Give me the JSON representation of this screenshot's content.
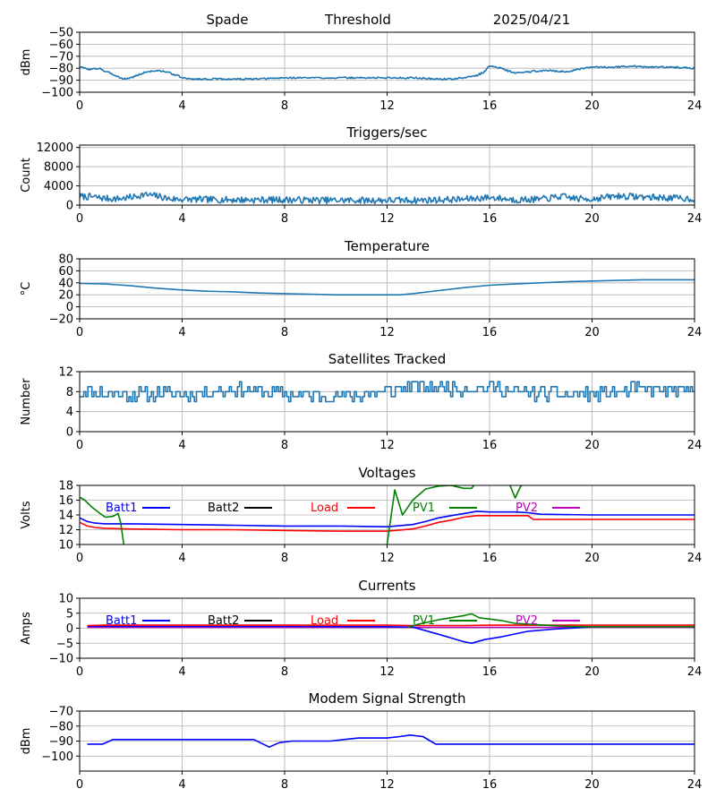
{
  "header": {
    "station": "Spade",
    "mode": "Threshold",
    "date": "2025/04/21"
  },
  "legend_labels": [
    "Batt1",
    "Batt2",
    "Load",
    "PV1",
    "PV2"
  ],
  "legend_colors": [
    "#0000ff",
    "#000000",
    "#ff0000",
    "#008000",
    "#bf00bf"
  ],
  "chart_data": [
    {
      "type": "line",
      "title": "",
      "ylabel": "dBm",
      "xlim": [
        0,
        24
      ],
      "ylim": [
        -100,
        -50
      ],
      "xticks": [
        0,
        4,
        8,
        12,
        16,
        20,
        24
      ],
      "yticks": [
        -100,
        -90,
        -80,
        -70,
        -60,
        -50
      ],
      "ytick_labels": [
        "−100",
        "−90",
        "−80",
        "−70",
        "−60",
        "−50"
      ],
      "grid": true,
      "series": [
        {
          "color": "#1f77b4",
          "noise": 0.7,
          "seed": 3,
          "x": [
            0,
            0.4,
            0.8,
            1.0,
            1.2,
            1.5,
            1.7,
            2.0,
            2.6,
            3.0,
            3.4,
            3.8,
            4.0,
            4.3,
            5,
            6,
            7,
            8,
            9,
            10,
            11,
            12,
            13,
            14,
            14.5,
            15,
            15.5,
            15.8,
            16.0,
            16.3,
            16.7,
            17.0,
            17.5,
            18,
            18.5,
            19,
            19.5,
            20,
            21,
            21.5,
            22,
            23,
            24
          ],
          "y": [
            -79,
            -81,
            -80,
            -83,
            -84,
            -87,
            -89,
            -88,
            -83,
            -82,
            -83,
            -86,
            -88,
            -89,
            -89,
            -89,
            -89,
            -88,
            -88,
            -88,
            -88,
            -88,
            -88,
            -89,
            -89,
            -88,
            -86,
            -83,
            -78,
            -79,
            -82,
            -84,
            -83,
            -82,
            -82,
            -83,
            -81,
            -79,
            -79,
            -78,
            -79,
            -79,
            -80
          ]
        }
      ]
    },
    {
      "type": "line",
      "title": "Triggers/sec",
      "ylabel": "Count",
      "xlim": [
        0,
        24
      ],
      "ylim": [
        0,
        12500
      ],
      "xticks": [
        0,
        4,
        8,
        12,
        16,
        20,
        24
      ],
      "yticks": [
        0,
        4000,
        8000,
        12000
      ],
      "ytick_labels": [
        "0",
        "4000",
        "8000",
        "12000"
      ],
      "grid": true,
      "series": [
        {
          "color": "#1f77b4",
          "noise": 700,
          "seed": 7,
          "min": 0,
          "x": [
            0,
            0.5,
            1,
            1.5,
            2,
            2.5,
            3,
            3.5,
            4,
            6,
            8,
            10,
            12,
            13,
            14,
            15,
            16,
            17,
            18,
            18.8,
            19.5,
            20,
            21,
            22,
            23,
            24
          ],
          "y": [
            1800,
            1700,
            1400,
            1300,
            1600,
            2200,
            1900,
            1300,
            1200,
            1100,
            1100,
            1000,
            1000,
            1000,
            1100,
            1200,
            1600,
            1100,
            1200,
            1800,
            1300,
            1300,
            1900,
            1700,
            1500,
            1300
          ]
        }
      ]
    },
    {
      "type": "line",
      "title": "Temperature",
      "ylabel": "°C",
      "xlim": [
        0,
        24
      ],
      "ylim": [
        -20,
        80
      ],
      "xticks": [
        0,
        4,
        8,
        12,
        16,
        20,
        24
      ],
      "yticks": [
        -20,
        0,
        20,
        40,
        60,
        80
      ],
      "ytick_labels": [
        "−20",
        "0",
        "20",
        "40",
        "60",
        "80"
      ],
      "grid": true,
      "series": [
        {
          "color": "#1f77b4",
          "x": [
            0,
            1,
            2,
            3,
            4,
            5,
            6,
            7,
            8,
            9,
            10,
            11,
            12,
            12.5,
            13,
            14,
            15,
            16,
            17,
            18,
            19,
            20,
            21,
            22,
            23,
            24
          ],
          "y": [
            39,
            38,
            35,
            31,
            28,
            26,
            25,
            23,
            22,
            21,
            20,
            20,
            20,
            20,
            22,
            27,
            32,
            36,
            38,
            40,
            42,
            43,
            44,
            45,
            45,
            45
          ]
        }
      ]
    },
    {
      "type": "line",
      "title": "Satellites Tracked",
      "ylabel": "Number",
      "xlim": [
        0,
        24
      ],
      "ylim": [
        0,
        12
      ],
      "xticks": [
        0,
        4,
        8,
        12,
        16,
        20,
        24
      ],
      "yticks": [
        0,
        4,
        8,
        12
      ],
      "ytick_labels": [
        "0",
        "4",
        "8",
        "12"
      ],
      "grid": true,
      "series": [
        {
          "color": "#1f77b4",
          "step": true,
          "noise": 1.4,
          "seed": 11,
          "round": true,
          "min": 5,
          "max": 11,
          "x": [
            0,
            2,
            4,
            6,
            8,
            10,
            12,
            13,
            14,
            15,
            16,
            17,
            18,
            20,
            22,
            24
          ],
          "y": [
            8,
            7.5,
            7.5,
            8.5,
            7.5,
            7,
            8,
            9,
            9,
            8.5,
            9,
            8,
            7.5,
            7.5,
            8.5,
            8
          ]
        }
      ]
    },
    {
      "type": "line",
      "title": "Voltages",
      "ylabel": "Volts",
      "xlim": [
        0,
        24
      ],
      "ylim": [
        10,
        18
      ],
      "xticks": [
        0,
        4,
        8,
        12,
        16,
        20,
        24
      ],
      "yticks": [
        10,
        12,
        14,
        16,
        18
      ],
      "ytick_labels": [
        "10",
        "12",
        "14",
        "16",
        "18"
      ],
      "grid": true,
      "legend": true,
      "series": [
        {
          "name": "Batt1",
          "color": "#0000ff",
          "x": [
            0,
            0.3,
            0.6,
            1,
            2,
            4,
            6,
            8,
            10,
            12,
            13,
            13.5,
            14,
            14.5,
            15,
            15.5,
            16,
            17,
            17.5,
            18,
            20,
            22,
            24
          ],
          "y": [
            13.6,
            13.1,
            12.9,
            12.8,
            12.8,
            12.7,
            12.6,
            12.5,
            12.5,
            12.4,
            12.7,
            13.1,
            13.6,
            13.9,
            14.2,
            14.5,
            14.4,
            14.4,
            14.3,
            14.1,
            14.0,
            14.0,
            14.0
          ]
        },
        {
          "name": "Load",
          "color": "#ff0000",
          "x": [
            0,
            0.3,
            0.6,
            1,
            2,
            4,
            6,
            8,
            10,
            12,
            13,
            13.5,
            14,
            14.5,
            15,
            15.5,
            16,
            17,
            17.5,
            17.7,
            18,
            20,
            22,
            24
          ],
          "y": [
            13.0,
            12.5,
            12.3,
            12.2,
            12.1,
            12.0,
            12.0,
            11.9,
            11.8,
            11.8,
            12.1,
            12.5,
            13.0,
            13.3,
            13.7,
            13.9,
            13.9,
            13.9,
            13.9,
            13.4,
            13.4,
            13.4,
            13.4,
            13.4
          ]
        },
        {
          "name": "PV1",
          "color": "#008000",
          "x": [
            0,
            0.2,
            0.5,
            0.8,
            1.0,
            1.3,
            1.5,
            1.6,
            1.7,
            1.75,
            null,
            12.0,
            12.1,
            12.3,
            12.6,
            12.8,
            13.0,
            13.5,
            14.0,
            14.5,
            15.0,
            15.3,
            15.5,
            null,
            16.5,
            16.8,
            17.0,
            17.2,
            17.4
          ],
          "y": [
            16.4,
            16.0,
            15.0,
            14.2,
            13.7,
            13.8,
            14.2,
            13.0,
            10.5,
            9.5,
            null,
            10.0,
            12.5,
            17.4,
            14.0,
            15.0,
            16.0,
            17.5,
            17.9,
            18.0,
            17.6,
            17.6,
            18.5,
            null,
            18.5,
            18.0,
            16.3,
            17.8,
            18.5
          ]
        }
      ]
    },
    {
      "type": "line",
      "title": "Currents",
      "ylabel": "Amps",
      "xlim": [
        0,
        24
      ],
      "ylim": [
        -10,
        10
      ],
      "xticks": [
        0,
        4,
        8,
        12,
        16,
        20,
        24
      ],
      "yticks": [
        -10,
        -5,
        0,
        5,
        10
      ],
      "ytick_labels": [
        "−10",
        "−5",
        "0",
        "5",
        "10"
      ],
      "grid": true,
      "legend": true,
      "series": [
        {
          "name": "PV2",
          "color": "#bf00bf",
          "x": [
            0.3,
            24
          ],
          "y": [
            0.3,
            0.3
          ]
        },
        {
          "name": "Batt1",
          "color": "#0000ff",
          "x": [
            0.3,
            4,
            8,
            12,
            13,
            14,
            15.0,
            15.3,
            15.8,
            16.5,
            17.5,
            18.5,
            19.5,
            20,
            24
          ],
          "y": [
            0.7,
            0.6,
            0.6,
            0.5,
            0.4,
            -2.0,
            -4.5,
            -5.0,
            -3.8,
            -2.8,
            -1.0,
            -0.3,
            0.2,
            0.5,
            0.5
          ]
        },
        {
          "name": "Load",
          "color": "#ff0000",
          "x": [
            0.3,
            1,
            4,
            8,
            12,
            13,
            15,
            16,
            20,
            24
          ],
          "y": [
            0.9,
            1.0,
            1.0,
            1.0,
            1.0,
            0.9,
            0.9,
            1.0,
            1.0,
            1.0
          ]
        },
        {
          "name": "PV1",
          "color": "#008000",
          "x": [
            12.8,
            13.2,
            14.0,
            15.0,
            15.3,
            15.6,
            16.5,
            17.0,
            18.0,
            19.0,
            20.0,
            24
          ],
          "y": [
            0.3,
            1.3,
            2.8,
            4.2,
            4.8,
            3.5,
            2.5,
            1.6,
            1.1,
            0.6,
            0.5,
            0.5
          ]
        }
      ]
    },
    {
      "type": "line",
      "title": "Modem Signal Strength",
      "ylabel": "dBm",
      "xlim": [
        0,
        24
      ],
      "ylim": [
        -110,
        -70
      ],
      "xticks": [
        0,
        4,
        8,
        12,
        16,
        20,
        24
      ],
      "yticks": [
        -100,
        -90,
        -80,
        -70
      ],
      "ytick_labels": [
        "−100",
        "−90",
        "−80",
        "−70"
      ],
      "grid": true,
      "series": [
        {
          "color": "#0000ff",
          "x": [
            0.3,
            0.9,
            1.3,
            1.9,
            2.5,
            3.5,
            4.5,
            5.5,
            6.8,
            7.4,
            7.8,
            8.3,
            9.0,
            9.8,
            10.3,
            10.9,
            11.3,
            12.0,
            12.5,
            12.9,
            13.4,
            13.9,
            14.5,
            15.5,
            24
          ],
          "y": [
            -92,
            -92,
            -89,
            -89,
            -89,
            -89,
            -89,
            -89,
            -89,
            -94,
            -91,
            -90,
            -90,
            -90,
            -89,
            -88,
            -88,
            -88,
            -87,
            -86,
            -87,
            -92,
            -92,
            -92,
            -92
          ]
        }
      ]
    }
  ]
}
